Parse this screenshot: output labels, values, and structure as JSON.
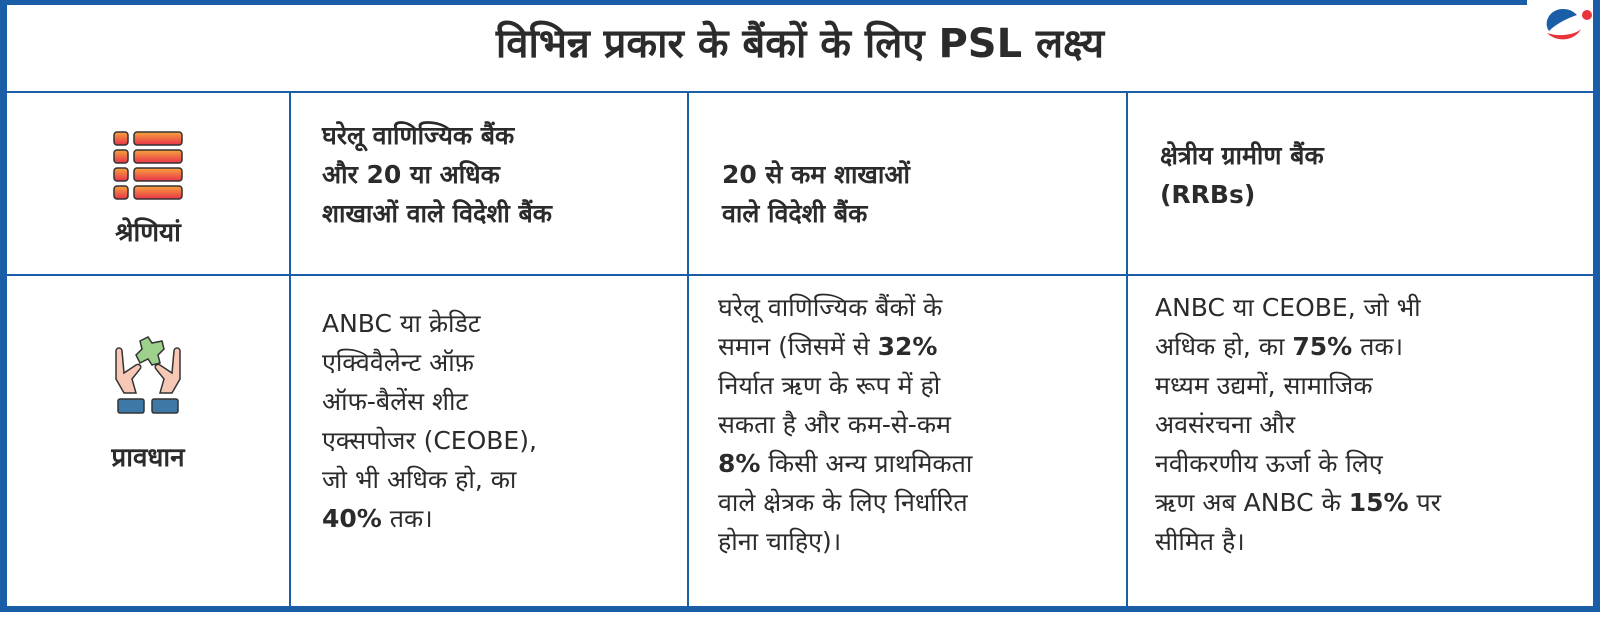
{
  "title": "विभिन्न प्रकार के बैंकों के लिए PSL लक्ष्य",
  "colors": {
    "border": "#1b5ea8",
    "logo_blue": "#1b5ea8",
    "logo_red": "#e8343b"
  },
  "rows": {
    "categories": {
      "label": "श्रेणियां",
      "icon": "list-icon"
    },
    "provisions": {
      "label": "प्रावधान",
      "icon": "hands-holding-puzzle-icon"
    }
  },
  "headers": [
    [
      "घरेलू वाणिज्यिक बैंक",
      "और 20 या अधिक",
      "शाखाओं वाले विदेशी बैंक"
    ],
    [
      "20 से कम शाखाओं",
      "वाले विदेशी बैंक"
    ],
    [
      "क्षेत्रीय ग्रामीण बैंक",
      "(RRBs)"
    ]
  ],
  "cells": [
    [
      [
        {
          "t": "ANBC या क्रेडिट"
        }
      ],
      [
        {
          "t": "एक्विवैलेन्ट ऑफ़"
        }
      ],
      [
        {
          "t": "ऑफ-बैलेंस शीट"
        }
      ],
      [
        {
          "t": "एक्सपोजर (CEOBE),"
        }
      ],
      [
        {
          "t": "जो भी अधिक हो, का"
        }
      ],
      [
        {
          "t": "40%",
          "b": true
        },
        {
          "t": " तक।"
        }
      ]
    ],
    [
      [
        {
          "t": "घरेलू वाणिज्यिक बैंकों के"
        }
      ],
      [
        {
          "t": "समान (जिसमें से "
        },
        {
          "t": "32%",
          "b": true
        }
      ],
      [
        {
          "t": "निर्यात ऋण के रूप में हो"
        }
      ],
      [
        {
          "t": "सकता है और कम-से-कम"
        }
      ],
      [
        {
          "t": "8%",
          "b": true
        },
        {
          "t": " किसी अन्य प्राथमिकता"
        }
      ],
      [
        {
          "t": "वाले क्षेत्रक के लिए निर्धारित"
        }
      ],
      [
        {
          "t": "होना चाहिए)।"
        }
      ]
    ],
    [
      [
        {
          "t": "ANBC या CEOBE, जो भी"
        }
      ],
      [
        {
          "t": "अधिक हो, का "
        },
        {
          "t": "75%",
          "b": true
        },
        {
          "t": " तक।"
        }
      ],
      [
        {
          "t": "मध्यम उद्यमों, सामाजिक"
        }
      ],
      [
        {
          "t": "अवसंरचना और"
        }
      ],
      [
        {
          "t": "नवीकरणीय ऊर्जा के लिए"
        }
      ],
      [
        {
          "t": "ऋण अब ANBC के "
        },
        {
          "t": "15%",
          "b": true
        },
        {
          "t": " पर"
        }
      ],
      [
        {
          "t": "सीमित है।"
        }
      ]
    ]
  ]
}
